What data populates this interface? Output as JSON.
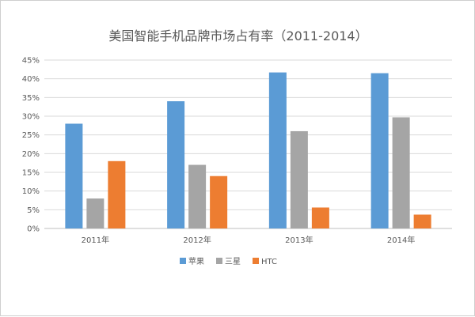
{
  "chart_data": {
    "type": "bar",
    "title": "美国智能手机品牌市场占有率（2011-2014）",
    "xlabel": "",
    "ylabel": "",
    "categories": [
      "2011年",
      "2012年",
      "2013年",
      "2014年"
    ],
    "series": [
      {
        "name": "苹果",
        "color": "#5B9BD5",
        "values": [
          28,
          34,
          41.7,
          41.5
        ]
      },
      {
        "name": "三星",
        "color": "#A5A5A5",
        "values": [
          8,
          17,
          26,
          29.7
        ]
      },
      {
        "name": "HTC",
        "color": "#ED7D31",
        "values": [
          18,
          14,
          5.6,
          3.7
        ]
      }
    ],
    "ylim": [
      0,
      45
    ],
    "yticks": [
      "0%",
      "5%",
      "10%",
      "15%",
      "20%",
      "25%",
      "30%",
      "35%",
      "40%",
      "45%"
    ],
    "grid": true,
    "legend_position": "bottom"
  }
}
